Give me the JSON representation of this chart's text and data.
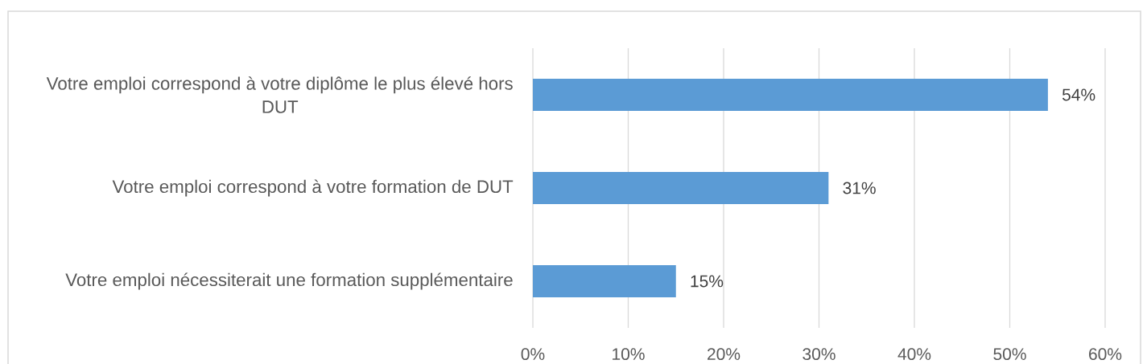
{
  "chart_data": {
    "type": "bar",
    "orientation": "horizontal",
    "categories": [
      "Votre emploi correspond à votre diplôme le plus élevé hors DUT",
      "Votre emploi correspond à votre formation de DUT",
      "Votre emploi nécessiterait une formation supplémentaire"
    ],
    "values": [
      54,
      31,
      15
    ],
    "value_labels": [
      "54%",
      "31%",
      "15%"
    ],
    "color": "#5b9bd5",
    "xlim": [
      0,
      60
    ],
    "xticks": [
      {
        "value": 0,
        "label": "0%"
      },
      {
        "value": 10,
        "label": "10%"
      },
      {
        "value": 20,
        "label": "20%"
      },
      {
        "value": 30,
        "label": "30%"
      },
      {
        "value": 40,
        "label": "40%"
      },
      {
        "value": 50,
        "label": "50%"
      },
      {
        "value": 60,
        "label": "60%"
      }
    ],
    "grid": "x"
  }
}
